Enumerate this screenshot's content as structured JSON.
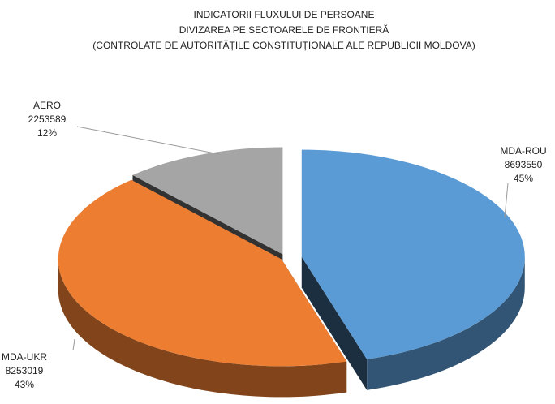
{
  "chart_data": {
    "type": "pie3d",
    "title": [
      "INDICATORII FLUXULUI DE PERSOANE",
      "DIVIZAREA PE SECTOARELE DE FRONTIERĂ",
      "(CONTROLATE DE AUTORITĂȚILE CONSTITUȚIONALE ALE REPUBLICII MOLDOVA)"
    ],
    "categories": [
      "MDA-ROU",
      "MDA-UKR",
      "AERO"
    ],
    "values": [
      8693550,
      8253019,
      2253589
    ],
    "percent_labels": [
      "45%",
      "43%",
      "12%"
    ],
    "colors": [
      "#5b9bd5",
      "#ed7d31",
      "#a5a5a5"
    ]
  }
}
